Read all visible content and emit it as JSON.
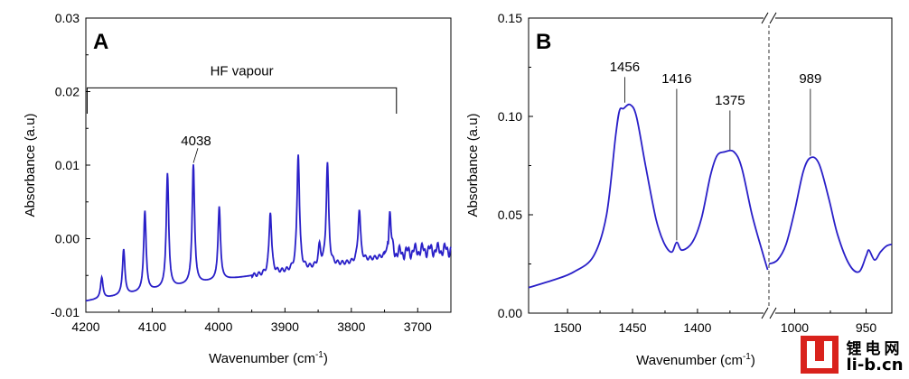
{
  "chart_data": [
    {
      "type": "line",
      "panel_label": "A",
      "xlabel": "Wavenumber (cm",
      "xlabel_sup": "-1",
      "xlabel_end": ")",
      "ylabel": "Absorbance (a.u)",
      "xlim": [
        4200,
        3650
      ],
      "ylim": [
        -0.01,
        0.03
      ],
      "x_ticks": [
        "4200",
        "4100",
        "4000",
        "3900",
        "3800",
        "3700"
      ],
      "y_ticks": [
        "-0.01",
        "0.00",
        "0.01",
        "0.02",
        "0.03"
      ],
      "bracket": {
        "label": "HF vapour",
        "x_start": 4198,
        "x_end": 3732
      },
      "annotations": [
        {
          "text": "4038",
          "x": 4038
        }
      ],
      "series_color": "#2a20c8",
      "baseline": [
        [
          4200,
          -0.0085
        ],
        [
          4000,
          -0.0057
        ],
        [
          3800,
          -0.0033
        ],
        [
          3700,
          -0.0016
        ],
        [
          3650,
          -0.0015
        ]
      ],
      "peaks": [
        [
          4176,
          -0.0053
        ],
        [
          4143,
          -0.0015
        ],
        [
          4111,
          0.0037
        ],
        [
          4077,
          0.0088
        ],
        [
          4038,
          0.01
        ],
        [
          3999,
          0.0043
        ],
        [
          3922,
          0.0037
        ],
        [
          3880,
          0.0116
        ],
        [
          3848,
          -0.0012
        ],
        [
          3836,
          0.0102
        ],
        [
          3788,
          0.004
        ],
        [
          3742,
          0.0035
        ]
      ]
    },
    {
      "type": "line",
      "panel_label": "B",
      "xlabel": "Wavenumber (cm",
      "xlabel_sup": "-1",
      "xlabel_end": ")",
      "ylabel": "Absorbance (a.u)",
      "ylim": [
        0.0,
        0.15
      ],
      "x_ticks": [
        "1500",
        "1450",
        "1400",
        "1000",
        "950"
      ],
      "y_ticks": [
        "0.00",
        "0.05",
        "0.10",
        "0.15"
      ],
      "axis_break": true,
      "segments": [
        {
          "xlim": [
            1530,
            1345
          ]
        },
        {
          "xlim": [
            1018,
            932
          ]
        }
      ],
      "annotations": [
        {
          "text": "1456",
          "x": 1456
        },
        {
          "text": "1416",
          "x": 1416
        },
        {
          "text": "1375",
          "x": 1375
        },
        {
          "text": "989",
          "x": 989
        }
      ],
      "series_color": "#2a20c8",
      "series_left": [
        [
          1530,
          0.013
        ],
        [
          1510,
          0.017
        ],
        [
          1495,
          0.021
        ],
        [
          1480,
          0.029
        ],
        [
          1470,
          0.05
        ],
        [
          1463,
          0.09
        ],
        [
          1460,
          0.103
        ],
        [
          1457,
          0.104
        ],
        [
          1452,
          0.106
        ],
        [
          1447,
          0.1
        ],
        [
          1440,
          0.075
        ],
        [
          1432,
          0.048
        ],
        [
          1426,
          0.036
        ],
        [
          1420,
          0.031
        ],
        [
          1416,
          0.036
        ],
        [
          1412,
          0.032
        ],
        [
          1404,
          0.036
        ],
        [
          1397,
          0.048
        ],
        [
          1390,
          0.07
        ],
        [
          1385,
          0.08
        ],
        [
          1379,
          0.082
        ],
        [
          1372,
          0.082
        ],
        [
          1366,
          0.074
        ],
        [
          1358,
          0.05
        ],
        [
          1350,
          0.031
        ],
        [
          1346,
          0.022
        ]
      ],
      "series_right": [
        [
          1018,
          0.025
        ],
        [
          1012,
          0.027
        ],
        [
          1006,
          0.035
        ],
        [
          1000,
          0.052
        ],
        [
          994,
          0.072
        ],
        [
          989,
          0.079
        ],
        [
          983,
          0.076
        ],
        [
          976,
          0.058
        ],
        [
          970,
          0.04
        ],
        [
          962,
          0.025
        ],
        [
          955,
          0.021
        ],
        [
          950,
          0.029
        ],
        [
          948,
          0.032
        ],
        [
          944,
          0.027
        ],
        [
          940,
          0.031
        ],
        [
          936,
          0.034
        ],
        [
          932,
          0.035
        ]
      ]
    }
  ],
  "watermark": {
    "logo_text": "LI",
    "line1": "锂电网",
    "line2": "li-b.cn"
  }
}
